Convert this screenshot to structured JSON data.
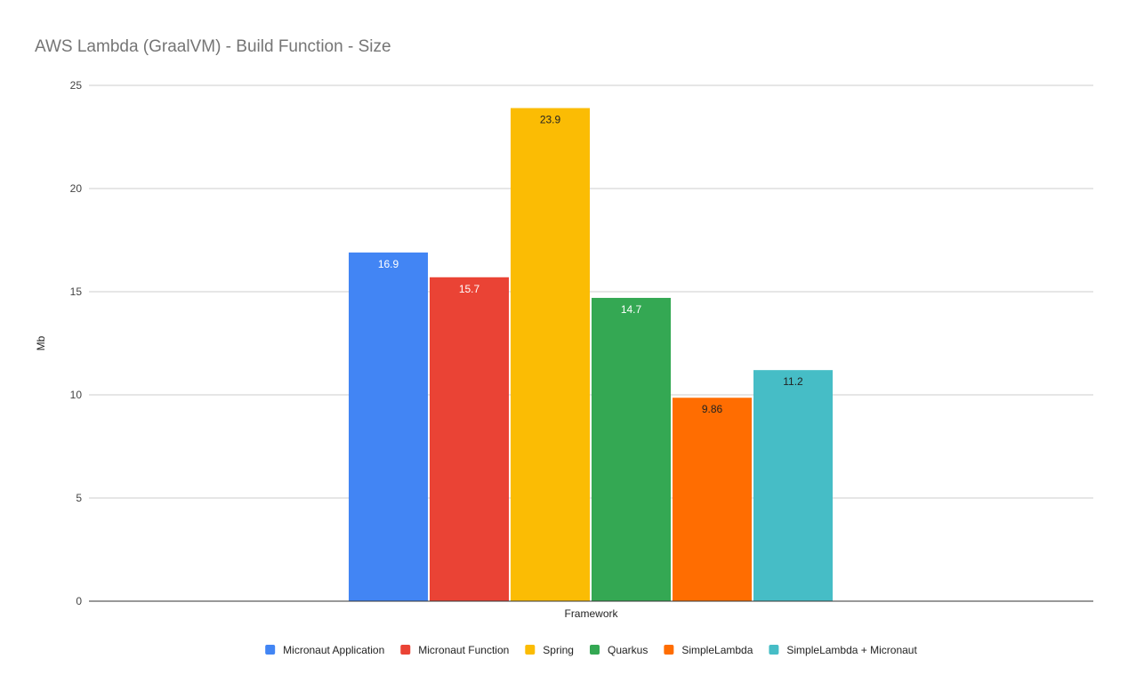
{
  "chart_data": {
    "type": "bar",
    "title": "AWS Lambda (GraalVM) - Build Function - Size",
    "xlabel": "Framework",
    "ylabel": "Mb",
    "categories": [
      "Framework"
    ],
    "ylim": [
      0,
      25
    ],
    "yticks": [
      0,
      5,
      10,
      15,
      20,
      25
    ],
    "grid": true,
    "legend_position": "bottom",
    "series": [
      {
        "name": "Micronaut Application",
        "values": [
          16.9
        ],
        "label": "16.9",
        "color": "#4285f4",
        "label_color": "#ffffff"
      },
      {
        "name": "Micronaut Function",
        "values": [
          15.7
        ],
        "label": "15.7",
        "color": "#ea4335",
        "label_color": "#ffffff"
      },
      {
        "name": "Spring",
        "values": [
          23.9
        ],
        "label": "23.9",
        "color": "#fbbc04",
        "label_color": "#222222"
      },
      {
        "name": "Quarkus",
        "values": [
          14.7
        ],
        "label": "14.7",
        "color": "#34a853",
        "label_color": "#ffffff"
      },
      {
        "name": "SimpleLambda",
        "values": [
          9.86
        ],
        "label": "9.86",
        "color": "#ff6d01",
        "label_color": "#222222"
      },
      {
        "name": "SimpleLambda + Micronaut",
        "values": [
          11.2
        ],
        "label": "11.2",
        "color": "#46bdc6",
        "label_color": "#222222"
      }
    ]
  }
}
